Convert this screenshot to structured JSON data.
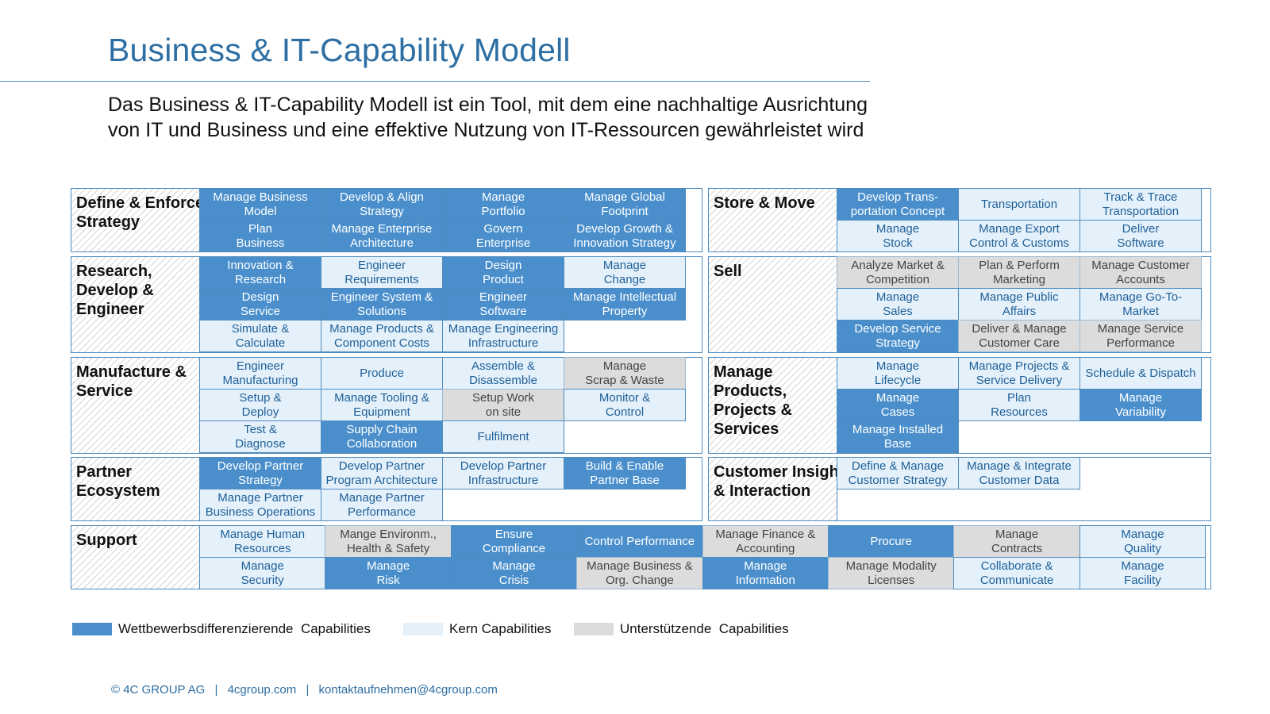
{
  "header": {
    "title": "Business & IT-Capability Modell",
    "subtitle_line1": "Das Business & IT-Capability Modell ist ein Tool, mit dem eine nachhaltige Ausrichtung",
    "subtitle_line2": "von IT und Business und eine effektive Nutzung von IT-Ressourcen gewährleistet wird"
  },
  "colors": {
    "title": "#2d6ea3",
    "wettbewerbsdifferenzierend": "#4a8fcc",
    "kern": "#e4f1fb",
    "unterstuetzend": "#dcdcdc",
    "border": "#4f8cbf"
  },
  "groups": {
    "strategy": {
      "label": "Define & Enforce\nStrategy",
      "cells": [
        {
          "text": "Manage Business\nModel",
          "type": "d"
        },
        {
          "text": "Develop & Align\nStrategy",
          "type": "d"
        },
        {
          "text": "Manage\nPortfolio",
          "type": "d"
        },
        {
          "text": "Manage Global\nFootprint",
          "type": "d"
        },
        {
          "text": "Plan\nBusiness",
          "type": "d"
        },
        {
          "text": "Manage Enterprise\nArchitecture",
          "type": "d"
        },
        {
          "text": "Govern\nEnterprise",
          "type": "d"
        },
        {
          "text": "Develop Growth &\nInnovation Strategy",
          "type": "d"
        }
      ]
    },
    "research": {
      "label": "Research,\nDevelop &\nEngineer",
      "cells": [
        {
          "text": "Innovation &\nResearch",
          "type": "d"
        },
        {
          "text": "Engineer\nRequirements",
          "type": "k"
        },
        {
          "text": "Design\nProduct",
          "type": "d"
        },
        {
          "text": "Manage\nChange",
          "type": "k"
        },
        {
          "text": "Design\nService",
          "type": "d"
        },
        {
          "text": "Engineer System &\nSolutions",
          "type": "d"
        },
        {
          "text": "Engineer\nSoftware",
          "type": "d"
        },
        {
          "text": "Manage Intellectual\nProperty",
          "type": "d"
        },
        {
          "text": "Simulate &\nCalculate",
          "type": "k"
        },
        {
          "text": "Manage Products &\nComponent Costs",
          "type": "k"
        },
        {
          "text": "Manage Engineering\nInfrastructure",
          "type": "k"
        }
      ]
    },
    "manufacture": {
      "label": "Manufacture &\nService",
      "cells": [
        {
          "text": "Engineer\nManufacturing",
          "type": "k"
        },
        {
          "text": "Produce",
          "type": "k"
        },
        {
          "text": "Assemble &\nDisassemble",
          "type": "k"
        },
        {
          "text": "Manage\nScrap & Waste",
          "type": "u"
        },
        {
          "text": "Setup &\nDeploy",
          "type": "k"
        },
        {
          "text": "Manage Tooling &\nEquipment",
          "type": "k"
        },
        {
          "text": "Setup Work\non site",
          "type": "u"
        },
        {
          "text": "Monitor &\nControl",
          "type": "k"
        },
        {
          "text": "Test &\nDiagnose",
          "type": "k"
        },
        {
          "text": "Supply Chain\nCollaboration",
          "type": "d"
        },
        {
          "text": "Fulfilment",
          "type": "k"
        }
      ]
    },
    "partner": {
      "label": "Partner\nEcosystem",
      "cells": [
        {
          "text": "Develop Partner\nStrategy",
          "type": "d"
        },
        {
          "text": "Develop Partner\nProgram Architecture",
          "type": "k"
        },
        {
          "text": "Develop Partner\nInfrastructure",
          "type": "k"
        },
        {
          "text": "Build & Enable\nPartner Base",
          "type": "d"
        },
        {
          "text": "Manage Partner\nBusiness Operations",
          "type": "k"
        },
        {
          "text": "Manage Partner\nPerformance",
          "type": "k"
        }
      ]
    },
    "store": {
      "label": "Store & Move",
      "cells": [
        {
          "text": "Develop Trans-\nportation Concept",
          "type": "d"
        },
        {
          "text": "Transportation",
          "type": "k"
        },
        {
          "text": "Track & Trace\nTransportation",
          "type": "k"
        },
        {
          "text": "Manage\nStock",
          "type": "k"
        },
        {
          "text": "Manage Export\nControl & Customs",
          "type": "k"
        },
        {
          "text": "Deliver\nSoftware",
          "type": "k"
        }
      ]
    },
    "sell": {
      "label": "Sell",
      "cells": [
        {
          "text": "Analyze Market &\nCompetition",
          "type": "u"
        },
        {
          "text": "Plan & Perform\nMarketing",
          "type": "u"
        },
        {
          "text": "Manage Customer\nAccounts",
          "type": "u"
        },
        {
          "text": "Manage\nSales",
          "type": "k"
        },
        {
          "text": "Manage Public\nAffairs",
          "type": "k"
        },
        {
          "text": "Manage Go-To-\nMarket",
          "type": "k"
        },
        {
          "text": "Develop Service\nStrategy",
          "type": "d"
        },
        {
          "text": "Deliver & Manage\nCustomer Care",
          "type": "u"
        },
        {
          "text": "Manage Service\nPerformance",
          "type": "u"
        }
      ]
    },
    "products": {
      "label": "Manage\nProducts,\nProjects &\nServices",
      "cells": [
        {
          "text": "Manage\nLifecycle",
          "type": "k"
        },
        {
          "text": "Manage Projects &\nService Delivery",
          "type": "k"
        },
        {
          "text": "Schedule & Dispatch",
          "type": "k"
        },
        {
          "text": "Manage\nCases",
          "type": "d"
        },
        {
          "text": "Plan\nResources",
          "type": "k"
        },
        {
          "text": "Manage\nVariability",
          "type": "d"
        },
        {
          "text": "Manage Installed\nBase",
          "type": "d"
        }
      ]
    },
    "customer": {
      "label": "Customer Insight\n& Interaction",
      "cells": [
        {
          "text": "Define & Manage\nCustomer Strategy",
          "type": "k"
        },
        {
          "text": "Manage & Integrate\nCustomer Data",
          "type": "k"
        }
      ]
    },
    "support": {
      "label": "Support",
      "cells": [
        {
          "text": "Manage Human\nResources",
          "type": "k"
        },
        {
          "text": "Mange Environm.,\nHealth & Safety",
          "type": "u"
        },
        {
          "text": "Ensure\nCompliance",
          "type": "d"
        },
        {
          "text": "Control Performance",
          "type": "d"
        },
        {
          "text": "Manage Finance &\nAccounting",
          "type": "u"
        },
        {
          "text": "Procure",
          "type": "d"
        },
        {
          "text": "Manage\nContracts",
          "type": "u"
        },
        {
          "text": "Manage\nQuality",
          "type": "k"
        },
        {
          "text": "Manage\nSecurity",
          "type": "k"
        },
        {
          "text": "Manage\nRisk",
          "type": "d"
        },
        {
          "text": "Manage\nCrisis",
          "type": "d"
        },
        {
          "text": "Manage Business &\nOrg. Change",
          "type": "u"
        },
        {
          "text": "Manage\nInformation",
          "type": "d"
        },
        {
          "text": "Manage Modality\nLicenses",
          "type": "u"
        },
        {
          "text": "Collaborate &\nCommunicate",
          "type": "k"
        },
        {
          "text": "Manage\nFacility",
          "type": "k"
        }
      ]
    }
  },
  "legend": {
    "item1": "Wettbewerbsdifferenzierende  Capabilities",
    "item2": "Kern Capabilities",
    "item3": "Unterstützende  Capabilities"
  },
  "footer": {
    "copyright": "© 4C GROUP AG",
    "website": "4cgroup.com",
    "email": "kontaktaufnehmen@4cgroup.com",
    "separator": "|"
  }
}
